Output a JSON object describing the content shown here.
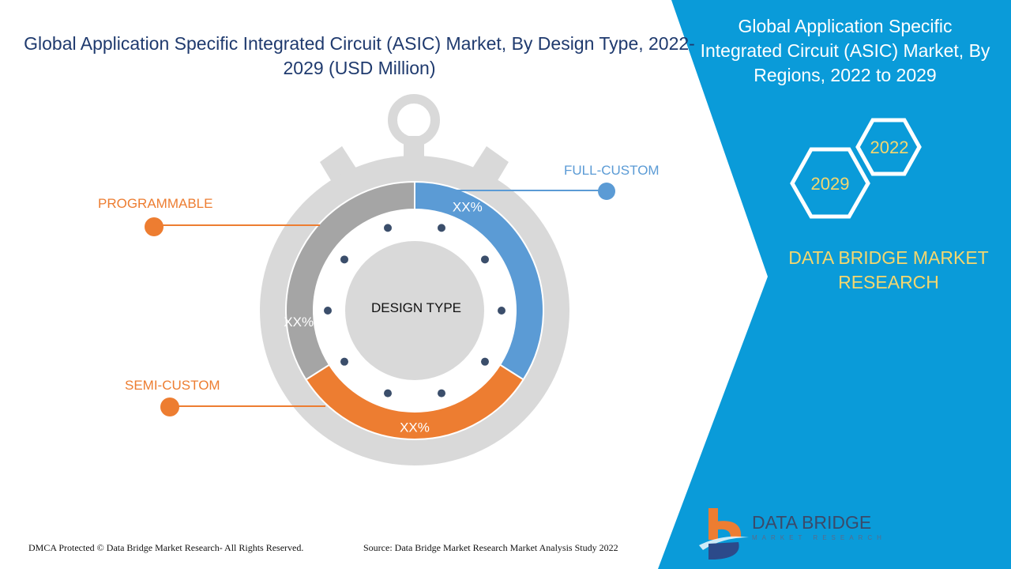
{
  "title": "Global Application Specific Integrated Circuit (ASIC) Market, By Design Type, 2022-2029 (USD Million)",
  "right_panel": {
    "title": "Global Application Specific Integrated Circuit (ASIC) Market, By Regions, 2022 to 2029",
    "year_a": "2022",
    "year_b": "2029",
    "brand": "DATA BRIDGE MARKET RESEARCH",
    "logo_text": "DATA BRIDGE",
    "logo_sub": "MARKET RESEARCH",
    "color": "#0a9bd9"
  },
  "chart_data": {
    "type": "pie",
    "center_label": "DESIGN TYPE",
    "categories": [
      "FULL-CUSTOM",
      "SEMI-CUSTOM",
      "PROGRAMMABLE"
    ],
    "values": [
      34,
      32,
      34
    ],
    "data_labels": [
      "XX%",
      "XX%",
      "XX%"
    ],
    "colors": [
      "#5b9bd5",
      "#ed7d31",
      "#a5a5a5"
    ],
    "label_colors": [
      "#5b9bd5",
      "#ed7d31",
      "#ed7d31"
    ]
  },
  "footer": {
    "copyright": "DMCA Protected © Data Bridge Market Research- All Rights Reserved.",
    "source": "Source: Data Bridge Market Research Market Analysis Study 2022"
  }
}
